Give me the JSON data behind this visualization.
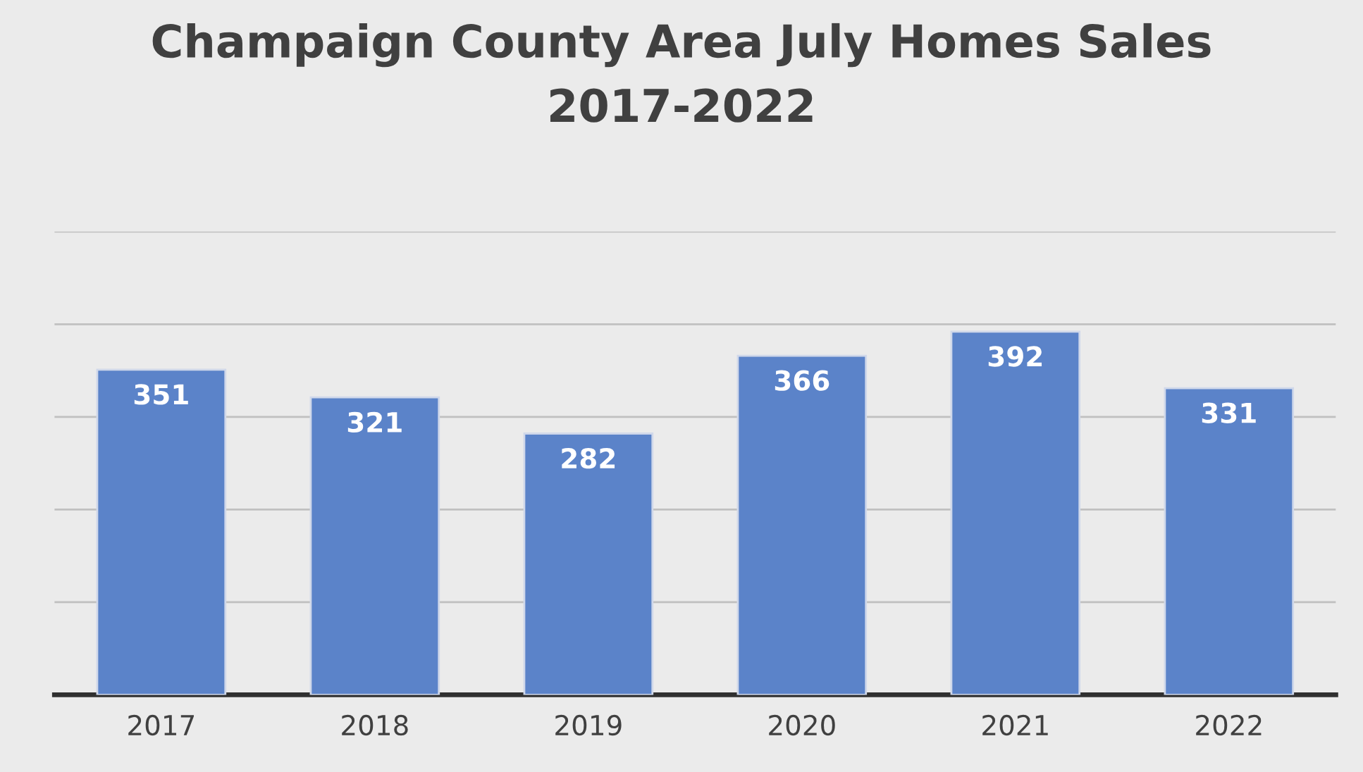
{
  "chart_data": {
    "type": "bar",
    "title": "Champaign County Area July Homes Sales\n2017-2022",
    "categories": [
      "2017",
      "2018",
      "2019",
      "2020",
      "2021",
      "2022"
    ],
    "values": [
      351,
      321,
      282,
      366,
      392,
      331
    ],
    "color": "#5b83c9",
    "ylim": [
      0,
      500
    ],
    "yticks": [
      {
        "value": 0,
        "label": null
      },
      {
        "value": 100,
        "label": null
      },
      {
        "value": 200,
        "label": null
      },
      {
        "value": 300,
        "label": null
      },
      {
        "value": 400,
        "label": null
      },
      {
        "value": 500,
        "label": null
      }
    ],
    "grid": "y",
    "tick_labels": "x",
    "data_labels": true,
    "legend": false
  }
}
